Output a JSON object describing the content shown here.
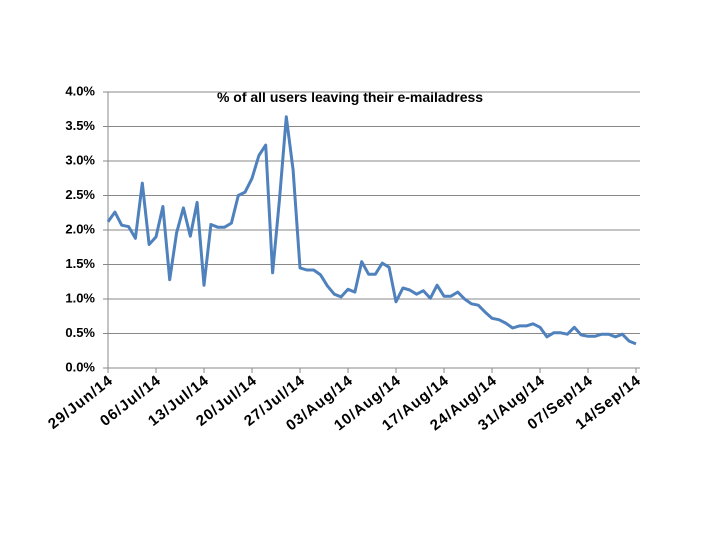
{
  "chart_data": {
    "type": "line",
    "title": "% of all users leaving their e-mailadress",
    "categories": [
      "29/Jun/14",
      null,
      null,
      null,
      null,
      null,
      null,
      "06/Jul/14",
      null,
      null,
      null,
      null,
      null,
      null,
      "13/Jul/14",
      null,
      null,
      null,
      null,
      null,
      null,
      "20/Jul/14",
      null,
      null,
      null,
      null,
      null,
      null,
      "27/Jul/14",
      null,
      null,
      null,
      null,
      null,
      null,
      "03/Aug/14",
      null,
      null,
      null,
      null,
      null,
      null,
      "10/Aug/14",
      null,
      null,
      null,
      null,
      null,
      null,
      "17/Aug/14",
      null,
      null,
      null,
      null,
      null,
      null,
      "24/Aug/14",
      null,
      null,
      null,
      null,
      null,
      null,
      "31/Aug/14",
      null,
      null,
      null,
      null,
      null,
      null,
      "07/Sep/14",
      null,
      null,
      null,
      null,
      null,
      null,
      "14/Sep/14"
    ],
    "series": [
      {
        "color": "#4f81bd",
        "values": [
          2.12,
          2.26,
          2.07,
          2.05,
          1.88,
          2.68,
          1.79,
          1.9,
          2.34,
          1.28,
          1.96,
          2.32,
          1.91,
          2.4,
          1.2,
          2.08,
          2.04,
          2.04,
          2.1,
          2.5,
          2.55,
          2.75,
          3.08,
          3.23,
          1.38,
          2.43,
          3.64,
          2.87,
          1.45,
          1.42,
          1.42,
          1.35,
          1.19,
          1.07,
          1.03,
          1.14,
          1.1,
          1.54,
          1.36,
          1.36,
          1.52,
          1.46,
          0.96,
          1.16,
          1.13,
          1.07,
          1.12,
          1.01,
          1.2,
          1.04,
          1.04,
          1.1,
          1.0,
          0.93,
          0.91,
          0.81,
          0.72,
          0.7,
          0.65,
          0.58,
          0.61,
          0.61,
          0.64,
          0.59,
          0.45,
          0.51,
          0.51,
          0.49,
          0.59,
          0.48,
          0.46,
          0.46,
          0.49,
          0.49,
          0.45,
          0.49,
          0.39,
          0.35
        ]
      }
    ],
    "ylim": [
      0,
      4
    ],
    "yticks": [
      {
        "value": 0,
        "label": "0.0%"
      },
      {
        "value": 0.5,
        "label": "0.5%"
      },
      {
        "value": 1,
        "label": "1.0%"
      },
      {
        "value": 1.5,
        "label": "1.5%"
      },
      {
        "value": 2,
        "label": "2.0%"
      },
      {
        "value": 2.5,
        "label": "2.5%"
      },
      {
        "value": 3,
        "label": "3.0%"
      },
      {
        "value": 3.5,
        "label": "3.5%"
      },
      {
        "value": 4,
        "label": "4.0%"
      }
    ],
    "grid": true
  }
}
